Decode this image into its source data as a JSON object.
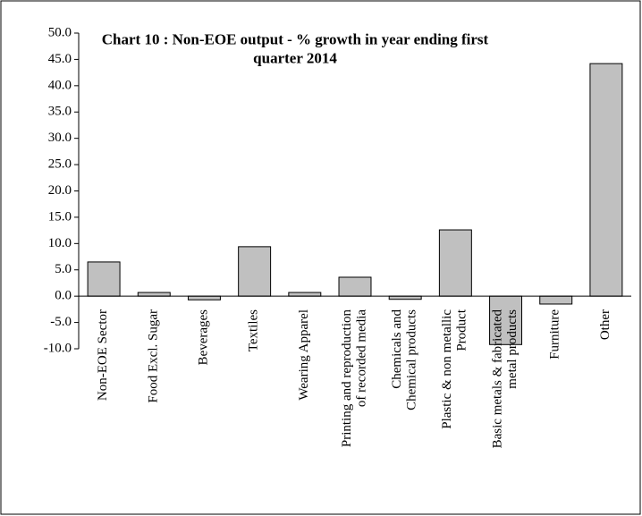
{
  "chart_data": {
    "type": "bar",
    "title": "Chart 10 : Non-EOE output - % growth in year ending first\nquarter 2014",
    "categories": [
      "Non-EOE Sector",
      "Food Excl. Sugar",
      "Beverages",
      "Textiles",
      "Wearing Apparel",
      "Printing and reproduction\nof recorded media",
      "Chemicals and\nChemical products",
      "Plastic & non metallic\nProduct",
      "Basic metals & fabricated\nmetal products",
      "Furniture",
      "Other"
    ],
    "values": [
      6.5,
      0.7,
      -0.7,
      9.4,
      0.7,
      3.6,
      -0.6,
      12.6,
      -9.2,
      -1.5,
      44.2
    ],
    "color": "#c0c0c0",
    "ylim": [
      -10,
      50
    ],
    "yticks": [
      {
        "value": -10,
        "label": "-10.0"
      },
      {
        "value": -5,
        "label": "-5.0"
      },
      {
        "value": 0,
        "label": "0.0"
      },
      {
        "value": 5,
        "label": "5.0"
      },
      {
        "value": 10,
        "label": "10.0"
      },
      {
        "value": 15,
        "label": "15.0"
      },
      {
        "value": 20,
        "label": "20.0"
      },
      {
        "value": 25,
        "label": "25.0"
      },
      {
        "value": 30,
        "label": "30.0"
      },
      {
        "value": 35,
        "label": "35.0"
      },
      {
        "value": 40,
        "label": "40.0"
      },
      {
        "value": 45,
        "label": "45.0"
      },
      {
        "value": 50,
        "label": "50.0"
      }
    ],
    "grid": false
  }
}
